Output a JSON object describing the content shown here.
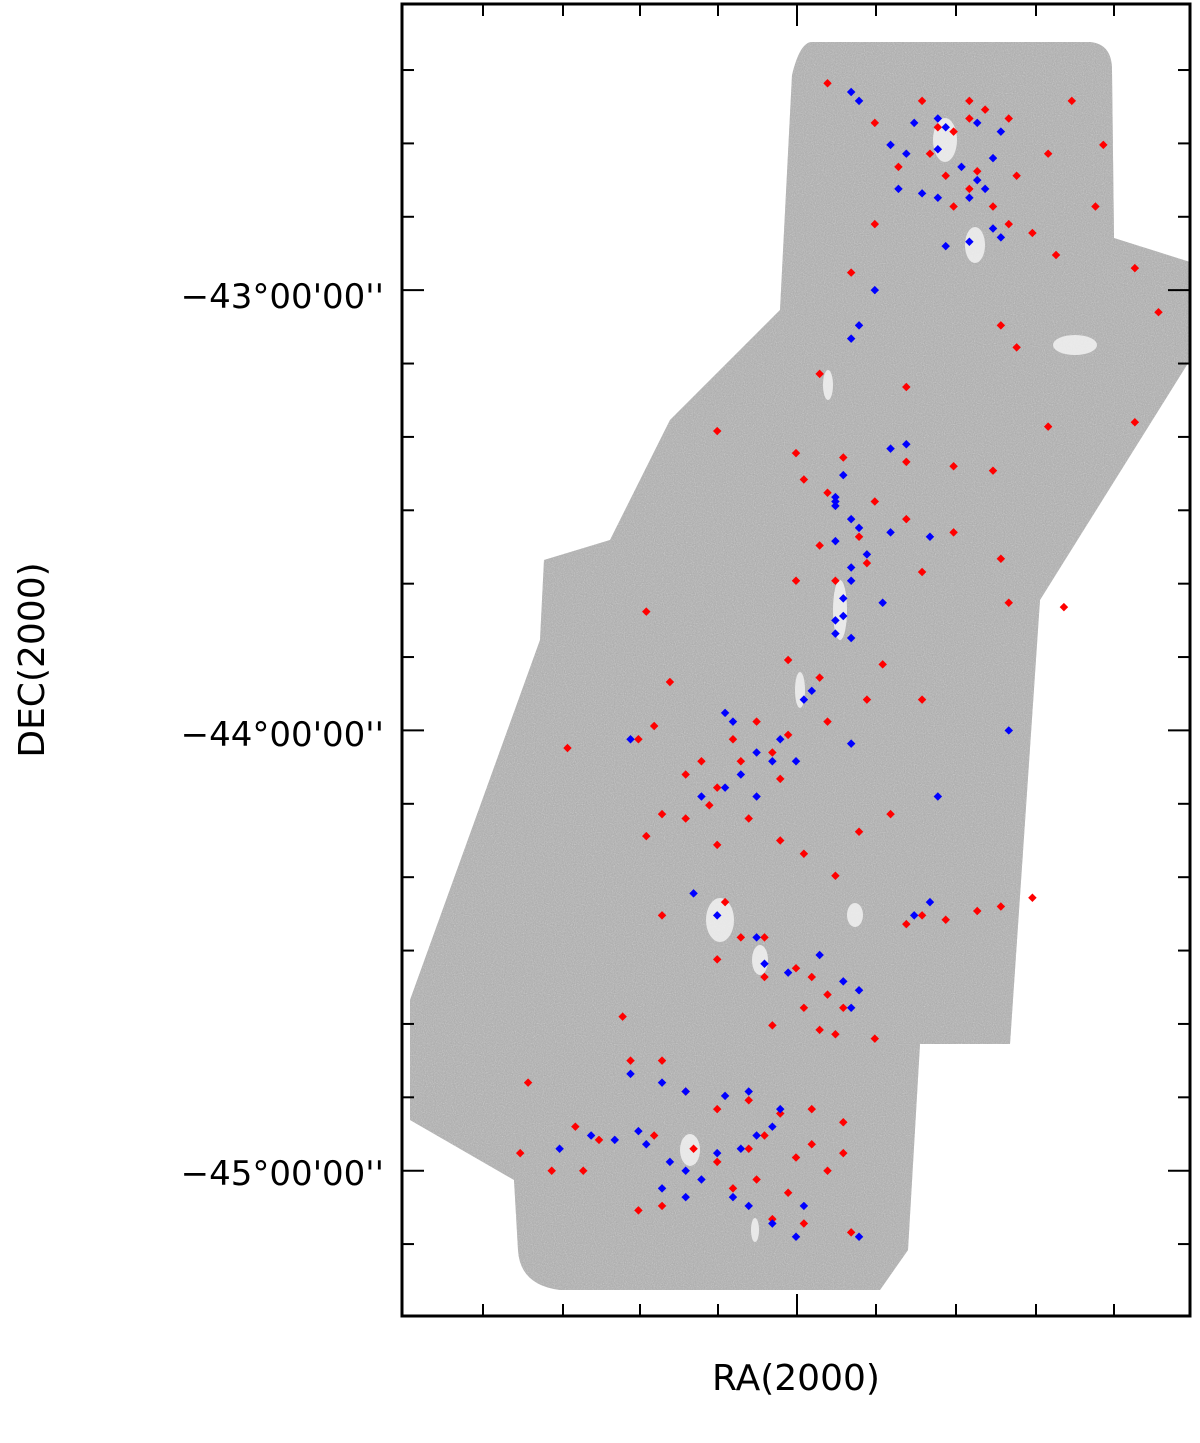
{
  "chart_data": {
    "type": "scatter",
    "title": "",
    "xlabel": "RA(2000)",
    "ylabel": "DEC(2000)",
    "y_tick_labels": [
      "−43°00'00''",
      "−44°00'00''",
      "−45°00'00''"
    ],
    "x_tick_labels": [],
    "ylim_deg": [
      -45.33,
      -42.35
    ],
    "xlim": [
      0,
      100
    ],
    "grid": false,
    "legend": "none",
    "background": "grayscale survey map with whiter emission along a north–south filament",
    "series": [
      {
        "color": "#ff0000",
        "points": [
          [
            54,
            -42.53
          ],
          [
            66,
            -42.57
          ],
          [
            72,
            -42.57
          ],
          [
            74,
            -42.59
          ],
          [
            85,
            -42.57
          ],
          [
            60,
            -42.62
          ],
          [
            68,
            -42.63
          ],
          [
            70,
            -42.64
          ],
          [
            72,
            -42.61
          ],
          [
            77,
            -42.61
          ],
          [
            82,
            -42.69
          ],
          [
            89,
            -42.67
          ],
          [
            67,
            -42.69
          ],
          [
            63,
            -42.72
          ],
          [
            69,
            -42.74
          ],
          [
            73,
            -42.73
          ],
          [
            78,
            -42.74
          ],
          [
            72,
            -42.77
          ],
          [
            70,
            -42.81
          ],
          [
            75,
            -42.81
          ],
          [
            77,
            -42.85
          ],
          [
            80,
            -42.87
          ],
          [
            83,
            -42.92
          ],
          [
            88,
            -42.81
          ],
          [
            60,
            -42.85
          ],
          [
            57,
            -42.96
          ],
          [
            93,
            -42.95
          ],
          [
            96,
            -43.05
          ],
          [
            76,
            -43.08
          ],
          [
            78,
            -43.13
          ],
          [
            53,
            -43.19
          ],
          [
            64,
            -43.22
          ],
          [
            82,
            -43.31
          ],
          [
            93,
            -43.3
          ],
          [
            40,
            -43.32
          ],
          [
            50,
            -43.37
          ],
          [
            56,
            -43.38
          ],
          [
            64,
            -43.39
          ],
          [
            70,
            -43.4
          ],
          [
            75,
            -43.41
          ],
          [
            51,
            -43.43
          ],
          [
            54,
            -43.46
          ],
          [
            60,
            -43.48
          ],
          [
            64,
            -43.52
          ],
          [
            70,
            -43.55
          ],
          [
            58,
            -43.56
          ],
          [
            53,
            -43.58
          ],
          [
            59,
            -43.62
          ],
          [
            66,
            -43.64
          ],
          [
            76,
            -43.61
          ],
          [
            50,
            -43.66
          ],
          [
            55,
            -43.66
          ],
          [
            31,
            -43.73
          ],
          [
            77,
            -43.71
          ],
          [
            84,
            -43.72
          ],
          [
            49,
            -43.84
          ],
          [
            61,
            -43.85
          ],
          [
            34,
            -43.89
          ],
          [
            53,
            -43.88
          ],
          [
            59,
            -43.93
          ],
          [
            66,
            -43.93
          ],
          [
            54,
            -43.98
          ],
          [
            45,
            -43.98
          ],
          [
            49,
            -44.01
          ],
          [
            21,
            -44.04
          ],
          [
            42,
            -44.02
          ],
          [
            30,
            -44.02
          ],
          [
            32,
            -43.99
          ],
          [
            38,
            -44.07
          ],
          [
            36,
            -44.1
          ],
          [
            40,
            -44.13
          ],
          [
            43,
            -44.07
          ],
          [
            47,
            -44.05
          ],
          [
            48,
            -44.11
          ],
          [
            39,
            -44.17
          ],
          [
            44,
            -44.2
          ],
          [
            36,
            -44.2
          ],
          [
            33,
            -44.19
          ],
          [
            48,
            -44.25
          ],
          [
            40,
            -44.26
          ],
          [
            31,
            -44.24
          ],
          [
            58,
            -44.23
          ],
          [
            62,
            -44.19
          ],
          [
            51,
            -44.28
          ],
          [
            55,
            -44.33
          ],
          [
            33,
            -44.42
          ],
          [
            41,
            -44.39
          ],
          [
            43,
            -44.47
          ],
          [
            40,
            -44.52
          ],
          [
            46,
            -44.47
          ],
          [
            64,
            -44.44
          ],
          [
            66,
            -44.42
          ],
          [
            69,
            -44.43
          ],
          [
            73,
            -44.41
          ],
          [
            76,
            -44.4
          ],
          [
            80,
            -44.38
          ],
          [
            46,
            -44.56
          ],
          [
            50,
            -44.54
          ],
          [
            52,
            -44.56
          ],
          [
            54,
            -44.6
          ],
          [
            56,
            -44.63
          ],
          [
            51,
            -44.63
          ],
          [
            53,
            -44.68
          ],
          [
            55,
            -44.69
          ],
          [
            28,
            -44.65
          ],
          [
            47,
            -44.67
          ],
          [
            60,
            -44.7
          ],
          [
            16,
            -44.8
          ],
          [
            29,
            -44.75
          ],
          [
            33,
            -44.75
          ],
          [
            36,
            -44.82
          ],
          [
            40,
            -44.86
          ],
          [
            44,
            -44.84
          ],
          [
            48,
            -44.87
          ],
          [
            52,
            -44.86
          ],
          [
            56,
            -44.89
          ],
          [
            46,
            -44.92
          ],
          [
            22,
            -44.9
          ],
          [
            25,
            -44.93
          ],
          [
            32,
            -44.92
          ],
          [
            37,
            -44.95
          ],
          [
            40,
            -44.98
          ],
          [
            44,
            -44.95
          ],
          [
            50,
            -44.97
          ],
          [
            52,
            -44.94
          ],
          [
            56,
            -44.96
          ],
          [
            54,
            -45.0
          ],
          [
            45,
            -45.02
          ],
          [
            42,
            -45.04
          ],
          [
            49,
            -45.05
          ],
          [
            15,
            -44.96
          ],
          [
            19,
            -45.0
          ],
          [
            23,
            -45.0
          ],
          [
            33,
            -45.08
          ],
          [
            47,
            -45.11
          ],
          [
            51,
            -45.12
          ],
          [
            57,
            -45.14
          ],
          [
            30,
            -45.09
          ]
        ]
      },
      {
        "color": "#0000ff",
        "points": [
          [
            57,
            -42.55
          ],
          [
            58,
            -42.57
          ],
          [
            65,
            -42.62
          ],
          [
            68,
            -42.61
          ],
          [
            69,
            -42.63
          ],
          [
            73,
            -42.62
          ],
          [
            76,
            -42.64
          ],
          [
            62,
            -42.67
          ],
          [
            64,
            -42.69
          ],
          [
            68,
            -42.68
          ],
          [
            75,
            -42.7
          ],
          [
            71,
            -42.72
          ],
          [
            73,
            -42.75
          ],
          [
            63,
            -42.77
          ],
          [
            66,
            -42.78
          ],
          [
            68,
            -42.79
          ],
          [
            74,
            -42.77
          ],
          [
            72,
            -42.79
          ],
          [
            75,
            -42.86
          ],
          [
            76,
            -42.88
          ],
          [
            72,
            -42.89
          ],
          [
            69,
            -42.9
          ],
          [
            60,
            -43.0
          ],
          [
            58,
            -43.08
          ],
          [
            57,
            -43.11
          ],
          [
            62,
            -43.36
          ],
          [
            64,
            -43.35
          ],
          [
            56,
            -43.42
          ],
          [
            55,
            -43.47
          ],
          [
            55,
            -43.49
          ],
          [
            57,
            -43.52
          ],
          [
            58,
            -43.54
          ],
          [
            62,
            -43.55
          ],
          [
            67,
            -43.56
          ],
          [
            55,
            -43.57
          ],
          [
            57,
            -43.63
          ],
          [
            59,
            -43.6
          ],
          [
            57,
            -43.66
          ],
          [
            56,
            -43.7
          ],
          [
            55,
            -43.75
          ],
          [
            55,
            -43.78
          ],
          [
            57,
            -43.79
          ],
          [
            52,
            -43.91
          ],
          [
            51,
            -43.93
          ],
          [
            41,
            -43.96
          ],
          [
            42,
            -43.98
          ],
          [
            48,
            -44.02
          ],
          [
            45,
            -44.05
          ],
          [
            47,
            -44.07
          ],
          [
            50,
            -44.07
          ],
          [
            43,
            -44.1
          ],
          [
            41,
            -44.13
          ],
          [
            38,
            -44.15
          ],
          [
            45,
            -44.15
          ],
          [
            29,
            -44.02
          ],
          [
            57,
            -44.03
          ],
          [
            68,
            -44.15
          ],
          [
            77,
            -44.0
          ],
          [
            37,
            -44.37
          ],
          [
            40,
            -44.42
          ],
          [
            45,
            -44.47
          ],
          [
            46,
            -44.53
          ],
          [
            49,
            -44.55
          ],
          [
            53,
            -44.51
          ],
          [
            56,
            -44.57
          ],
          [
            57,
            -44.63
          ],
          [
            58,
            -44.59
          ],
          [
            29,
            -44.78
          ],
          [
            33,
            -44.8
          ],
          [
            36,
            -44.82
          ],
          [
            41,
            -44.83
          ],
          [
            44,
            -44.82
          ],
          [
            48,
            -44.86
          ],
          [
            47,
            -44.9
          ],
          [
            45,
            -44.92
          ],
          [
            43,
            -44.95
          ],
          [
            40,
            -44.96
          ],
          [
            34,
            -44.98
          ],
          [
            36,
            -45.0
          ],
          [
            38,
            -45.02
          ],
          [
            42,
            -45.06
          ],
          [
            44,
            -45.08
          ],
          [
            47,
            -45.12
          ],
          [
            50,
            -45.15
          ],
          [
            30,
            -44.91
          ],
          [
            24,
            -44.92
          ],
          [
            27,
            -44.93
          ],
          [
            20,
            -44.95
          ],
          [
            31,
            -44.94
          ],
          [
            33,
            -45.04
          ],
          [
            36,
            -45.06
          ],
          [
            51,
            -45.08
          ],
          [
            58,
            -45.15
          ],
          [
            65,
            -44.42
          ],
          [
            67,
            -44.39
          ],
          [
            55,
            -43.48
          ],
          [
            56,
            -43.74
          ],
          [
            61,
            -43.71
          ]
        ]
      }
    ]
  }
}
